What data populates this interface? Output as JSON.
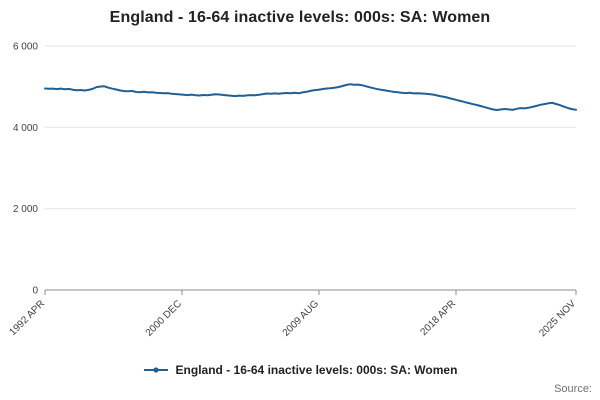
{
  "title": "England - 16-64 inactive levels: 000s: SA: Women",
  "legend": {
    "label": "England - 16-64 inactive levels: 000s: SA: Women"
  },
  "source_label": "Source:",
  "colors": {
    "line": "#206095",
    "grid": "#e4e4e4",
    "axis": "#8c8c8c",
    "text": "#414042"
  },
  "chart_data": {
    "type": "line",
    "title": "England - 16-64 inactive levels: 000s: SA: Women",
    "unit": "thousands of women",
    "frequency": "quarterly",
    "x_start": "1992 APR",
    "x_end": "2025 NOV",
    "ylim": [
      0,
      6000
    ],
    "grid": "horizontal",
    "legend_position": "bottom",
    "y_ticks": [
      {
        "label": "0",
        "value": 0
      },
      {
        "label": "2 000",
        "value": 2000
      },
      {
        "label": "4 000",
        "value": 4000
      },
      {
        "label": "6 000",
        "value": 6000
      }
    ],
    "x_ticks": [
      {
        "label": "1992 APR",
        "pos": 0
      },
      {
        "label": "2000 DEC",
        "pos": 0.258
      },
      {
        "label": "2009 AUG",
        "pos": 0.516
      },
      {
        "label": "2018 APR",
        "pos": 0.774
      },
      {
        "label": "2025 NOV",
        "pos": 1
      }
    ],
    "series": [
      {
        "name": "England - 16-64 inactive levels: 000s: SA: Women",
        "values": [
          4955,
          4948,
          4952,
          4940,
          4952,
          4938,
          4946,
          4925,
          4910,
          4918,
          4905,
          4920,
          4945,
          4990,
          5005,
          5010,
          4975,
          4950,
          4930,
          4905,
          4890,
          4885,
          4895,
          4870,
          4862,
          4875,
          4858,
          4865,
          4852,
          4845,
          4838,
          4842,
          4825,
          4818,
          4810,
          4800,
          4792,
          4805,
          4788,
          4782,
          4795,
          4790,
          4802,
          4815,
          4808,
          4795,
          4786,
          4775,
          4768,
          4780,
          4772,
          4785,
          4792,
          4788,
          4800,
          4818,
          4832,
          4825,
          4835,
          4828,
          4838,
          4845,
          4840,
          4852,
          4838,
          4858,
          4875,
          4895,
          4915,
          4925,
          4940,
          4955,
          4962,
          4975,
          4990,
          5015,
          5040,
          5060,
          5048,
          5052,
          5035,
          5010,
          4985,
          4960,
          4938,
          4920,
          4905,
          4888,
          4872,
          4865,
          4850,
          4842,
          4848,
          4835,
          4840,
          4832,
          4825,
          4818,
          4805,
          4782,
          4760,
          4745,
          4720,
          4695,
          4668,
          4645,
          4618,
          4595,
          4570,
          4548,
          4522,
          4495,
          4468,
          4442,
          4425,
          4438,
          4452,
          4440,
          4428,
          4455,
          4472,
          4465,
          4480,
          4502,
          4528,
          4555,
          4572,
          4590,
          4602,
          4575,
          4545,
          4508,
          4472,
          4448,
          4430
        ]
      }
    ]
  }
}
